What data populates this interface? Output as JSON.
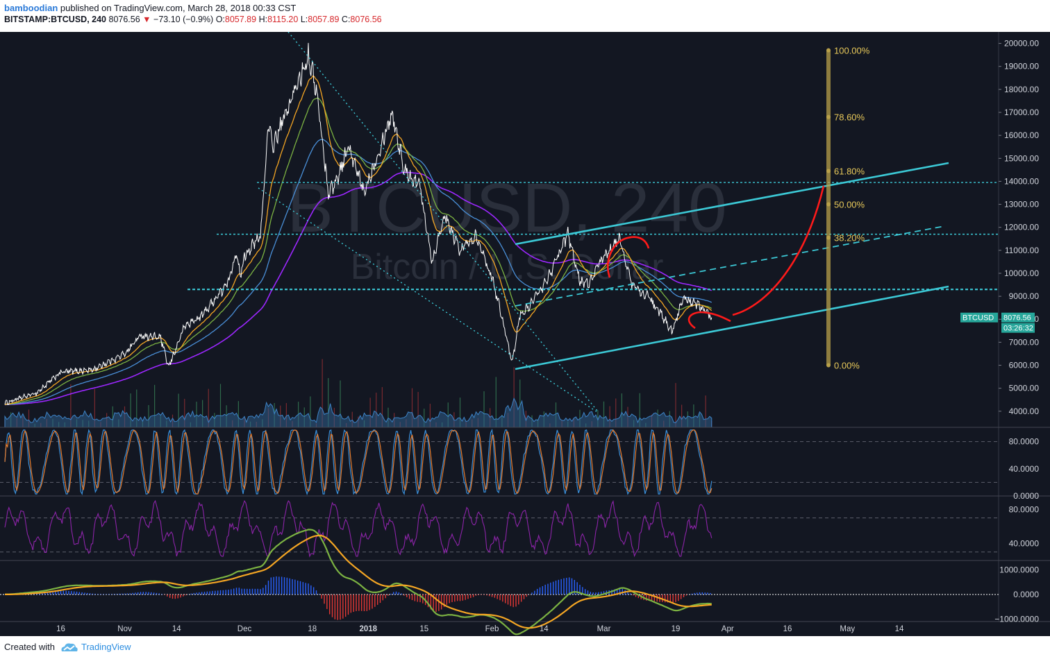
{
  "header": {
    "author": "bamboodian",
    "published_text": "published on TradingView.com, March 28, 2018 00:33 CST",
    "symbol": "BITSTAMP:BTCUSD, 240",
    "last": "8076.56",
    "change_arrow": "▼",
    "change": "−73.10 (−0.9%)",
    "o_label": "O:",
    "o_value": "8057.89",
    "h_label": "H:",
    "h_value": "8115.20",
    "l_label": "L:",
    "l_value": "8057.89",
    "c_label": "C:",
    "c_value": "8076.56"
  },
  "watermark": {
    "line1": "BTCUSD, 240",
    "line2": "Bitcoin / U.S. Dollar"
  },
  "footer": {
    "created": "Created with",
    "brand": "TradingView"
  },
  "colors": {
    "background": "#131722",
    "price": "#ffffff",
    "ema_fast": "#f5a623",
    "ema_mid": "#7cb342",
    "ema_slow": "#4a90d9",
    "ema_long": "#9c27ff",
    "trend_cyan": "#3cc9d6",
    "fib": "#b8a04a",
    "projection": "#ff1a1a",
    "price_label_bg": "#26a69a",
    "stoch_k": "#3a8fd9",
    "stoch_d": "#e87c2c",
    "rsi": "#8e24aa"
  },
  "chart_data": [
    {
      "type": "line",
      "title": "BITSTAMP:BTCUSD, 240",
      "x_labels": [
        "16",
        "Nov",
        "14",
        "Dec",
        "18",
        "2018",
        "15",
        "Feb",
        "14",
        "Mar",
        "19",
        "Apr",
        "16",
        "May",
        "14"
      ],
      "x": [
        "Oct 02",
        "Oct 16",
        "Nov 01",
        "Nov 14",
        "Dec 01",
        "Dec 18",
        "Jan 01",
        "Jan 15",
        "Feb 01",
        "Feb 14",
        "Mar 01",
        "Mar 19",
        "Apr 01",
        "Apr 16",
        "May 01",
        "May 14",
        "May 25"
      ],
      "ylim": [
        3300,
        20500
      ],
      "y_ticks": [
        4000,
        5000,
        6000,
        7000,
        8000,
        9000,
        10000,
        11000,
        12000,
        13000,
        14000,
        15000,
        16000,
        17000,
        18000,
        19000,
        20000
      ],
      "price_anchors": [
        [
          "Oct 02",
          4350
        ],
        [
          "Oct 10",
          4800
        ],
        [
          "Oct 16",
          5700
        ],
        [
          "Oct 24",
          5800
        ],
        [
          "Nov 01",
          6500
        ],
        [
          "Nov 05",
          7300
        ],
        [
          "Nov 10",
          7200
        ],
        [
          "Nov 12",
          5900
        ],
        [
          "Nov 16",
          7700
        ],
        [
          "Nov 20",
          8100
        ],
        [
          "Nov 27",
          9600
        ],
        [
          "Nov 29",
          11000
        ],
        [
          "Nov 30",
          9800
        ],
        [
          "Dec 01",
          10800
        ],
        [
          "Dec 05",
          11600
        ],
        [
          "Dec 07",
          16500
        ],
        [
          "Dec 08",
          15500
        ],
        [
          "Dec 12",
          17200
        ],
        [
          "Dec 17",
          19500
        ],
        [
          "Dec 19",
          18000
        ],
        [
          "Dec 22",
          13500
        ],
        [
          "Dec 24",
          14000
        ],
        [
          "Dec 27",
          15500
        ],
        [
          "Dec 31",
          13500
        ],
        [
          "Jan 05",
          16000
        ],
        [
          "Jan 07",
          17000
        ],
        [
          "Jan 10",
          14500
        ],
        [
          "Jan 14",
          13800
        ],
        [
          "Jan 17",
          10500
        ],
        [
          "Jan 20",
          12500
        ],
        [
          "Jan 24",
          11000
        ],
        [
          "Jan 28",
          11700
        ],
        [
          "Feb 01",
          9800
        ],
        [
          "Feb 03",
          8500
        ],
        [
          "Feb 06",
          6100
        ],
        [
          "Feb 08",
          8200
        ],
        [
          "Feb 10",
          8500
        ],
        [
          "Feb 14",
          9500
        ],
        [
          "Feb 17",
          10500
        ],
        [
          "Feb 20",
          11700
        ],
        [
          "Feb 23",
          9700
        ],
        [
          "Feb 25",
          9500
        ],
        [
          "Mar 01",
          10700
        ],
        [
          "Mar 05",
          11500
        ],
        [
          "Mar 08",
          9500
        ],
        [
          "Mar 12",
          9000
        ],
        [
          "Mar 15",
          8300
        ],
        [
          "Mar 18",
          7500
        ],
        [
          "Mar 21",
          8900
        ],
        [
          "Mar 24",
          8700
        ],
        [
          "Mar 26",
          8400
        ],
        [
          "Mar 28",
          8076
        ]
      ],
      "series": [
        {
          "name": "BTCUSD",
          "last": 8076.56
        }
      ],
      "fibonacci": {
        "levels": [
          "100.00%",
          "78.60%",
          "61.80%",
          "50.00%",
          "38.20%",
          "0.00%"
        ],
        "values": [
          19700,
          16800,
          14450,
          13000,
          11550,
          6000
        ]
      },
      "horizontal_levels": [
        13950,
        11700,
        9300
      ],
      "price_label": "BTCUSD",
      "price_value": "8076.56",
      "countdown": "03:26:32"
    },
    {
      "type": "line",
      "title": "Stochastic",
      "ylim": [
        0,
        100
      ],
      "y_ticks": [
        "80.0000",
        "40.0000",
        "0.0000"
      ],
      "levels": [
        80,
        20
      ]
    },
    {
      "type": "line",
      "title": "RSI",
      "ylim": [
        20,
        95
      ],
      "y_ticks": [
        "80.0000",
        "40.0000"
      ],
      "levels": [
        70,
        30
      ]
    },
    {
      "type": "line",
      "title": "MACD",
      "ylim": [
        -1100,
        1350
      ],
      "y_ticks": [
        "1000.0000",
        "0.0000",
        "−1000.0000"
      ]
    }
  ]
}
